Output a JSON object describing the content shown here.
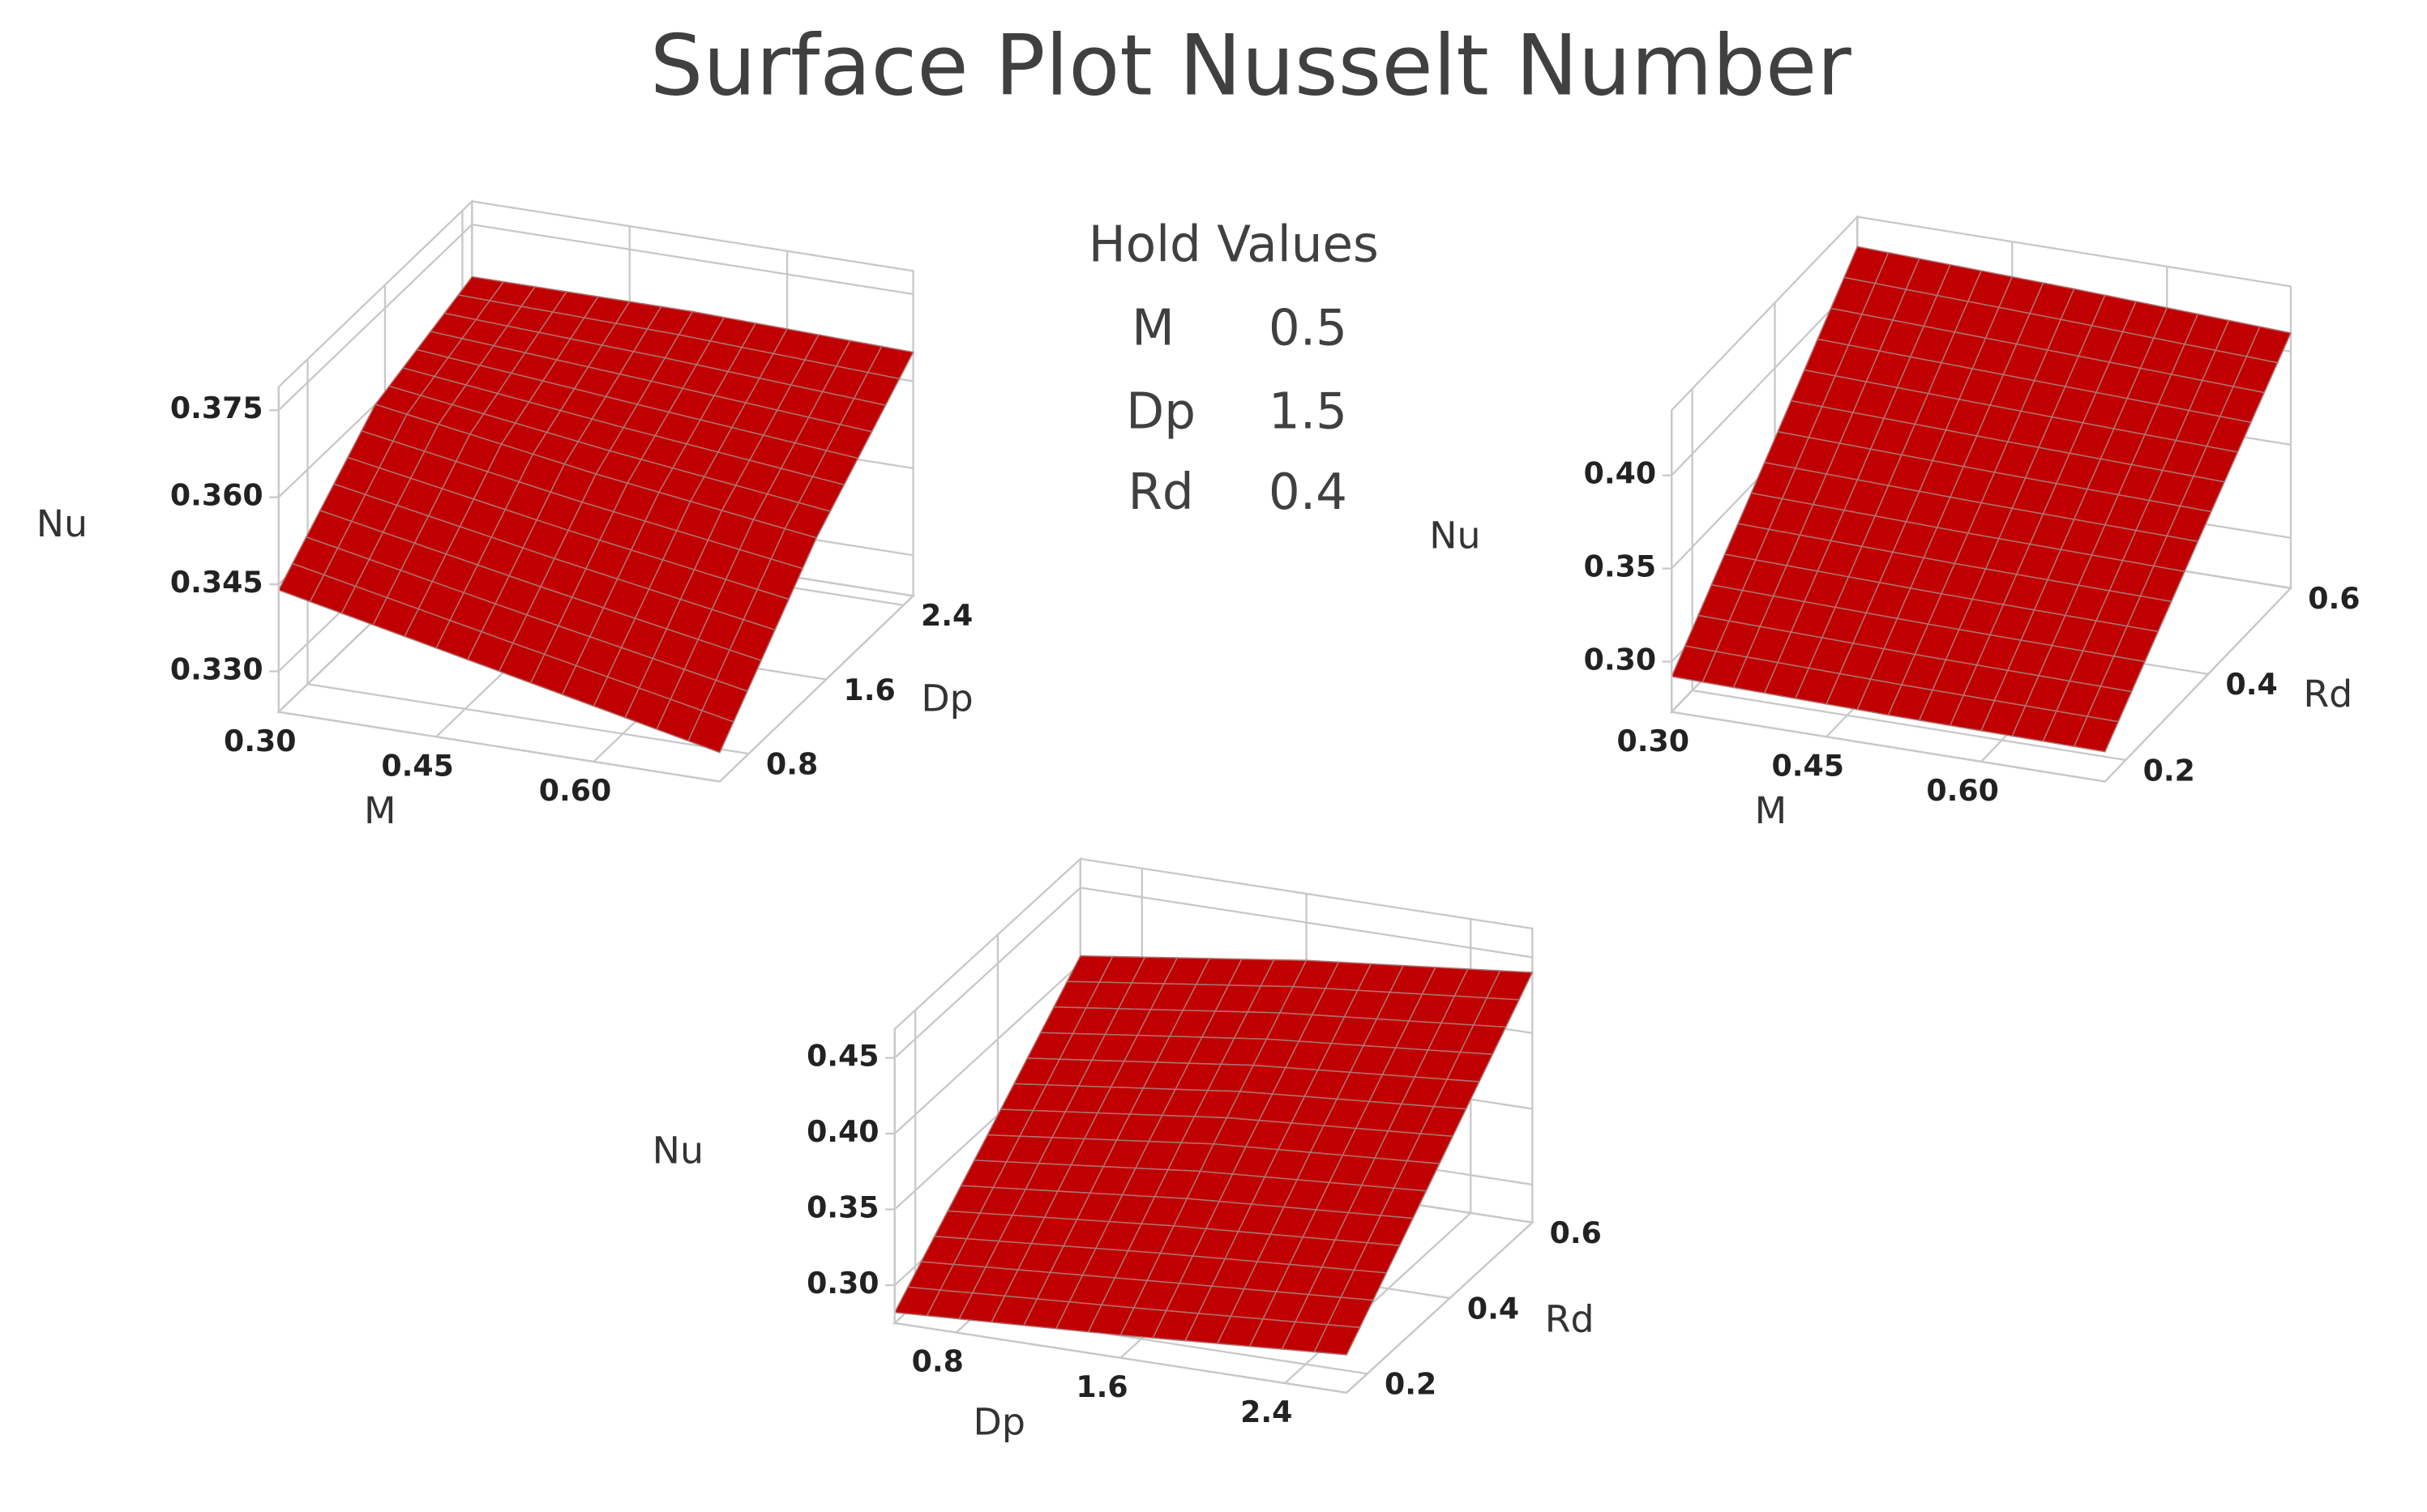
{
  "title": "Surface Plot Nusselt Number",
  "hold_values": {
    "title": "Hold Values",
    "rows": [
      {
        "name": "M",
        "value": 0.5
      },
      {
        "name": "Dp",
        "value": 1.5
      },
      {
        "name": "Rd",
        "value": 0.4
      }
    ]
  },
  "chart_data": [
    {
      "type": "surface",
      "color": "#c00000",
      "x_label": "M",
      "y_label": "Dp",
      "z_label": "Nu",
      "x": [
        0.3,
        0.51,
        0.72
      ],
      "y": [
        0.5,
        1.5,
        2.5
      ],
      "z": [
        [
          0.344,
          0.336,
          0.328
        ],
        [
          0.36,
          0.354,
          0.349
        ],
        [
          0.366,
          0.366,
          0.365
        ]
      ],
      "xlim": [
        0.3,
        0.72
      ],
      "ylim": [
        0.5,
        2.5
      ],
      "zlim": [
        0.323,
        0.379
      ],
      "xticks": [
        {
          "value": 0.3,
          "label": "0.30"
        },
        0.45,
        {
          "value": 0.6,
          "label": "0.60"
        }
      ],
      "yticks": [
        0.8,
        1.6,
        2.4
      ],
      "zticks": [
        {
          "value": 0.33,
          "label": "0.330"
        },
        0.345,
        {
          "value": 0.36,
          "label": "0.360"
        },
        0.375
      ]
    },
    {
      "type": "surface",
      "color": "#c00000",
      "x_label": "M",
      "y_label": "Rd",
      "z_label": "Nu",
      "x": [
        0.3,
        0.51,
        0.72
      ],
      "y": [
        0.15,
        0.375,
        0.6
      ],
      "z": [
        [
          0.292,
          0.29,
          0.289
        ],
        [
          0.355,
          0.352,
          0.35
        ],
        [
          0.419,
          0.415,
          0.41
        ]
      ],
      "xlim": [
        0.3,
        0.72
      ],
      "ylim": [
        0.15,
        0.6
      ],
      "zlim": [
        0.273,
        0.435
      ],
      "xticks": [
        {
          "value": 0.3,
          "label": "0.30"
        },
        0.45,
        {
          "value": 0.6,
          "label": "0.60"
        }
      ],
      "yticks": [
        0.2,
        0.4,
        0.6
      ],
      "zticks": [
        {
          "value": 0.3,
          "label": "0.30"
        },
        0.35,
        {
          "value": 0.4,
          "label": "0.40"
        }
      ]
    },
    {
      "type": "surface",
      "color": "#c00000",
      "x_label": "Dp",
      "y_label": "Rd",
      "z_label": "Nu",
      "x": [
        0.5,
        1.6,
        2.7
      ],
      "y": [
        0.15,
        0.375,
        0.6
      ],
      "z": [
        [
          0.282,
          0.29,
          0.3
        ],
        [
          0.343,
          0.36,
          0.37
        ],
        [
          0.405,
          0.425,
          0.44
        ]
      ],
      "xlim": [
        0.5,
        2.7
      ],
      "ylim": [
        0.15,
        0.6
      ],
      "zlim": [
        0.275,
        0.469
      ],
      "xticks": [
        0.8,
        1.6,
        2.4
      ],
      "yticks": [
        0.2,
        0.4,
        0.6
      ],
      "zticks": [
        {
          "value": 0.3,
          "label": "0.30"
        },
        0.35,
        {
          "value": 0.4,
          "label": "0.40"
        },
        0.45
      ]
    }
  ]
}
